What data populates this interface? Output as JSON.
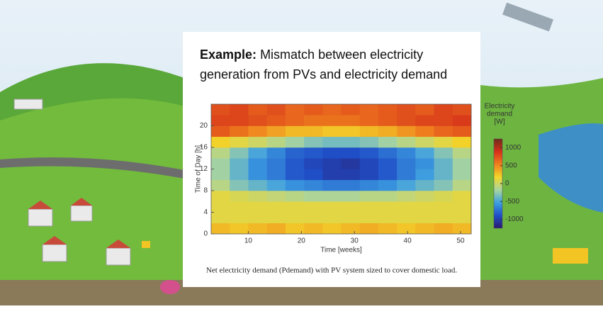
{
  "chart_data": {
    "type": "heatmap",
    "title_bold": "Example:",
    "title": [
      "Mismatch between electricity",
      "generation from PVs and electricity demand"
    ],
    "x_label": "Time [weeks]",
    "y_label": "Time of Day [h]",
    "colorbar_label": [
      "Electricity",
      "demand",
      "[W]"
    ],
    "caption": "Net electricity demand (Pdemand) with PV system sized to cover domestic load.",
    "xbins": [
      3,
      6.5,
      10,
      13.5,
      17,
      20.5,
      24,
      27.5,
      31,
      34.5,
      38,
      41.5,
      45,
      48.5,
      52
    ],
    "ybins": [
      0,
      2,
      4,
      6,
      8,
      10,
      12,
      14,
      16,
      18,
      20,
      22,
      24
    ],
    "xlim": [
      3,
      52
    ],
    "ylim": [
      0,
      24
    ],
    "xticks": [
      10,
      20,
      30,
      40,
      50
    ],
    "yticks": [
      0,
      4,
      8,
      12,
      16,
      20
    ],
    "clim": [
      -1250,
      1250
    ],
    "cticks": [
      -1000,
      -500,
      0,
      500,
      1000
    ],
    "colorscale": [
      "#2a1a6e",
      "#1f4fc8",
      "#3ea0e0",
      "#a8d5a0",
      "#f2d62a",
      "#f0801e",
      "#d6301a",
      "#6e2a1a"
    ],
    "z": [
      [
        300,
        250,
        300,
        350,
        250,
        300,
        250,
        300,
        350,
        300,
        250,
        300,
        350,
        300
      ],
      [
        100,
        100,
        100,
        100,
        100,
        100,
        100,
        100,
        100,
        100,
        100,
        100,
        100,
        100
      ],
      [
        100,
        100,
        100,
        100,
        100,
        100,
        100,
        100,
        100,
        100,
        100,
        100,
        100,
        100
      ],
      [
        100,
        50,
        0,
        -50,
        -100,
        -150,
        -150,
        -150,
        -100,
        -100,
        -50,
        0,
        50,
        100
      ],
      [
        -100,
        -300,
        -400,
        -500,
        -600,
        -650,
        -700,
        -700,
        -650,
        -600,
        -500,
        -400,
        -300,
        -100
      ],
      [
        -200,
        -400,
        -600,
        -700,
        -850,
        -900,
        -1000,
        -1000,
        -950,
        -850,
        -700,
        -550,
        -400,
        -200
      ],
      [
        -200,
        -400,
        -600,
        -700,
        -850,
        -950,
        -1000,
        -1050,
        -950,
        -850,
        -700,
        -600,
        -400,
        -200
      ],
      [
        -100,
        -300,
        -500,
        -650,
        -800,
        -850,
        -900,
        -900,
        -850,
        -750,
        -650,
        -500,
        -300,
        -100
      ],
      [
        200,
        100,
        0,
        -100,
        -200,
        -300,
        -350,
        -350,
        -300,
        -200,
        -100,
        0,
        100,
        200
      ],
      [
        700,
        600,
        500,
        400,
        300,
        300,
        250,
        250,
        300,
        350,
        450,
        550,
        650,
        700
      ],
      [
        800,
        800,
        750,
        700,
        650,
        600,
        600,
        600,
        650,
        700,
        750,
        800,
        800,
        850
      ],
      [
        750,
        800,
        700,
        750,
        650,
        700,
        650,
        700,
        650,
        700,
        750,
        700,
        800,
        750
      ]
    ]
  }
}
